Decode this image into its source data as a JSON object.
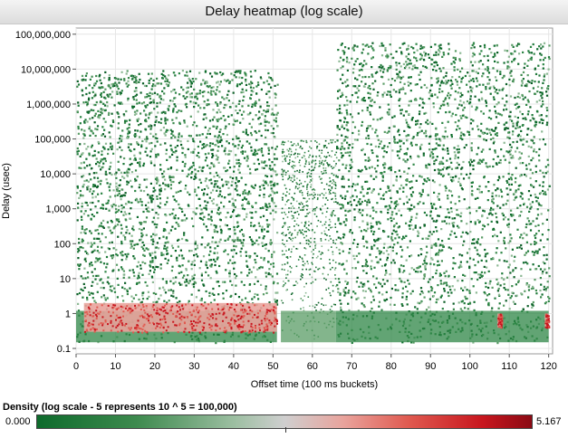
{
  "chart_data": {
    "type": "heatmap",
    "title": "Delay heatmap (log scale)",
    "xlabel": "Offset time (100 ms buckets)",
    "ylabel": "Delay (usec)",
    "xlim": [
      0,
      121
    ],
    "ylim": [
      0.07,
      150000000
    ],
    "y_scale": "log",
    "x_ticks": [
      0,
      10,
      20,
      30,
      40,
      50,
      60,
      70,
      80,
      90,
      100,
      110,
      120
    ],
    "x_tick_labels": [
      "0",
      "10",
      "20",
      "30",
      "40",
      "50",
      "60",
      "70",
      "80",
      "90",
      "100",
      "110",
      "120"
    ],
    "y_ticks": [
      0.1,
      1,
      10,
      100,
      1000,
      10000,
      100000,
      1000000,
      10000000,
      100000000
    ],
    "y_tick_labels": [
      "0.1",
      "1",
      "10",
      "100",
      "1,000",
      "10,000",
      "100,000",
      "1,000,000",
      "10,000,000",
      "100,000,000"
    ],
    "grid": true,
    "regions": [
      {
        "x": [
          0,
          51
        ],
        "y": [
          0.15,
          10000000
        ],
        "level": "dense"
      },
      {
        "x": [
          52,
          66
        ],
        "y": [
          0.15,
          100000
        ],
        "level": "sparse"
      },
      {
        "x": [
          66,
          120
        ],
        "y": [
          0.15,
          60000000
        ],
        "level": "dense"
      }
    ],
    "hotspots": [
      {
        "x": [
          2,
          51
        ],
        "y": [
          0.3,
          2
        ],
        "level": "high"
      },
      {
        "x": [
          107,
          108
        ],
        "y": [
          0.4,
          1
        ],
        "level": "high"
      },
      {
        "x": [
          119,
          120
        ],
        "y": [
          0.4,
          1
        ],
        "level": "high"
      }
    ],
    "colorbar": {
      "label": "Density (log scale - 5 represents 10 ^ 5 = 100,000)",
      "min": "0.000",
      "max": "5.167",
      "colors": [
        "#0e6b2c",
        "#cfcfcf",
        "#8b0a14"
      ]
    }
  }
}
